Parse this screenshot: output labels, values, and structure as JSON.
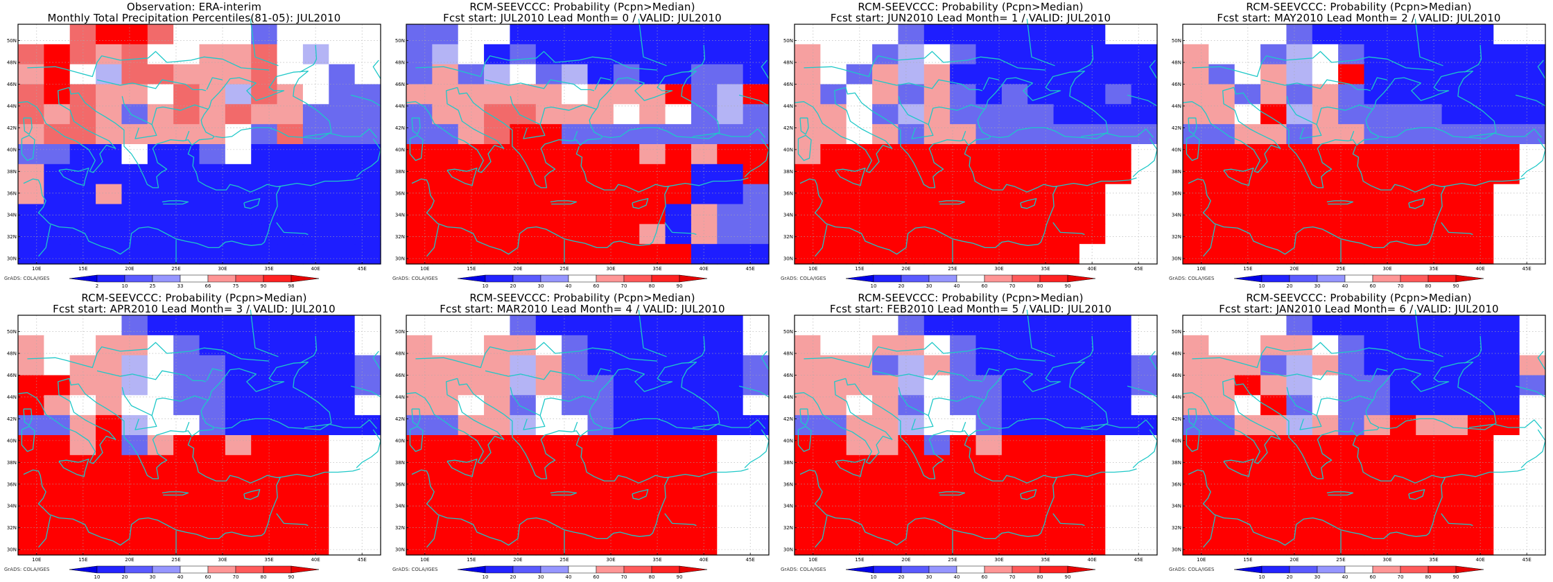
{
  "panels": [
    {
      "title1": "Observation: ERA-interim",
      "title2": "Monthly Total Precipitation Percentiles(81-05): JUL2010",
      "kind": "obs",
      "grid": [
        "..HRRH...b....",
        "HRHhH..hhH.w..",
        "hR.wHHhhhH..b.",
        "HRHhh.HhwHh.bb",
        "HhHhbhHhHhhbbb",
        "hHHhhhhh.bHbbb",
        "bbBB.BBb.BBBBB",
        "hBBBBBBBBBBBBB",
        "hBBhBBBBBBBBBB",
        "BBBBBBBBBBBBBB",
        "BBBBBBBBBBBBBB",
        "BBBBBBBBBBBBBB"
      ]
    },
    {
      "title1": "RCM-SEEVCCC: Probability (Pcpn>Median)",
      "title2": "Fcst start: JUL2010  Lead Month= 0 / VALID: JUL2010",
      "kind": "prob",
      "grid": [
        "bb..BBBBBBBBBB",
        "bw.BbBBBBBBBBB",
        "bhbw.bwBbBBbbB",
        "hhhhhh.hhhRbwR",
        "bhhHHhhh.h.bwb",
        "bbhHRRbbbbbbbb",
        "RRRRRRRRRhRhRR",
        "RRRRRRRRRRRBBR",
        "RRRRRRRRRRRBBb",
        "RRRRRRRRRRBhbb",
        "RRRRRRRRRhBhbb",
        "RRRRRRRRRRRBBB"
      ]
    },
    {
      "title1": "RCM-SEEVCCC: Probability (Pcpn>Median)",
      "title2": "Fcst start: JUN2010  Lead Month= 1 / VALID: JUL2010",
      "kind": "prob",
      "grid": [
        "....bBBBBBBB..",
        "h..bw.bBBBBBBB",
        "h.bhwhBBBBBBBB",
        "hb.hbhbBbBBBbB",
        "hh.bwhbbbbBBBB",
        "hh.hbhhbbbbbbb",
        "hRRRRRRRRRRRR.",
        "RRRRRRRRRRRRR.",
        "RRRRRRRRRRRR..",
        "RRRRRRRRRRRR..",
        "RRRRRRRRRRRR..",
        "RRRRRRRRRRR..."
      ]
    },
    {
      "title1": "RCM-SEEVCCC: Probability (Pcpn>Median)",
      "title2": "Fcst start: MAY2010  Lead Month= 2 / VALID: JUL2010",
      "kind": "prob",
      "grid": [
        "....bBBBBBBB..",
        "h..bw.bBBBBBBB",
        "hb.hw.RBBBBBBB",
        "hhbhbhbBBBBBBB",
        "hh.RwhbbbbBBBB",
        "bbhhbhhbbbbbbb",
        "RRRRRRRRRRRRR.",
        "RRRRRRRRRRRRR.",
        "RRRRRRRRRRRR..",
        "RRRRRRRRRRRR..",
        "RRRRRRRRRRRR..",
        "RRRRRRRRRRRR.."
      ]
    },
    {
      "title1": "RCM-SEEVCCC: Probability (Pcpn>Median)",
      "title2": "Fcst start: APR2010  Lead Month= 3 / VALID: JUL2010",
      "kind": "prob",
      "grid": [
        "....bBBBBBBBB.",
        "h..hh.bBBBBBB.",
        "h.hhw.bbBBBBBb",
        "RRhhw.bbBBBBBb",
        "Rh.h..bbBBBBB.",
        "bbhRw..bBBBBBB",
        "RRhRbhRRhRRR..",
        "RRRRRRRRRRRR..",
        "RRRRRRRRRRRR..",
        "RRRRRRRRRRRR..",
        "RRRRRRRRRRRR..",
        "RRRRRRRRRRRR.."
      ]
    },
    {
      "title1": "RCM-SEEVCCC: Probability (Pcpn>Median)",
      "title2": "Fcst start: MAR2010  Lead Month= 4 / VALID: JUL2010",
      "kind": "prob",
      "grid": [
        "....bBBBBBBBB.",
        "h..hh.bBBBBBB.",
        "hhhhwhbBBBBBBb",
        "hhhhwhbbBBBBBb",
        "hh.hb.bbBBBBB.",
        "bbhhw..bBBBBBB",
        "RRRRRRRRRRRR..",
        "RRRRRRRRRRRR..",
        "RRRRRRRRRRRR..",
        "RRRRRRRRRRRR..",
        "RRRRRRRRRRRR..",
        "RRRRRRRRRRRR.."
      ]
    },
    {
      "title1": "RCM-SEEVCCC: Probability (Pcpn>Median)",
      "title2": "Fcst start: FEB2010  Lead Month= 5 / VALID: JUL2010",
      "kind": "prob",
      "grid": [
        "....bBBBBBBBB.",
        "h..hh.bBBBBBB.",
        "hhhbwhbBBBBBBb",
        "hhhhw.bbBBBBBb",
        "hh.hb.bbBBBBB.",
        "bbhhw..bBBBBBB",
        "RRhhRbRhRRRR..",
        "RRRRRRRRRRRR..",
        "RRRRRRRRRRRR..",
        "RRRRRRRRRRRR..",
        "RRRRRRRRRRRR..",
        "RRRRRRRRRRRR.."
      ]
    },
    {
      "title1": "RCM-SEEVCCC: Probability (Pcpn>Median)",
      "title2": "Fcst start: JAN2010  Lead Month= 6 / VALID: JUL2010",
      "kind": "prob",
      "grid": [
        "....bBBBBBBBB.",
        "h..hh.bBBBBBB.",
        "hhhbwhbBBBBBBh",
        "hhRhw.bbBBBBBb",
        "hh.Rb.bbBBBBB.",
        "bbhhwhbhRhhRR.",
        "RRRRRRRRRRRR..",
        "RRRRRRRRRRRR..",
        "RRRRRRRRRRRR..",
        "RRRRRRRRRRRR..",
        "RRRRRRRRRRRR..",
        "RRRRRRRRRRRR.."
      ]
    }
  ],
  "lat_labels": [
    "50N",
    "48N",
    "46N",
    "44N",
    "42N",
    "40N",
    "38N",
    "36N",
    "34N",
    "32N",
    "30N"
  ],
  "lon_labels": [
    "10E",
    "15E",
    "20E",
    "25E",
    "30E",
    "35E",
    "40E",
    "45E"
  ],
  "colorbar_obs": [
    "2",
    "10",
    "25",
    "33",
    "66",
    "75",
    "90",
    "98"
  ],
  "colorbar_prob": [
    "10",
    "20",
    "30",
    "40",
    "60",
    "70",
    "80",
    "90"
  ],
  "credit": "GrADS: COLA/IGES",
  "colors": {
    "B": "#1e1eff",
    "b": "#6a6af0",
    "w": "#b4b4f5",
    ".": "#ffffff",
    "h": "#f6a0a0",
    "H": "#f26a6a",
    "R": "#ff0000",
    "coast": "#1ec8c8",
    "grid": "#aaaaaa"
  },
  "colorbar_colors": [
    "#0000e6",
    "#2323ff",
    "#5a5aff",
    "#9696ff",
    "#ffffff",
    "#ff9696",
    "#ff5a5a",
    "#ff2323",
    "#e60000"
  ]
}
